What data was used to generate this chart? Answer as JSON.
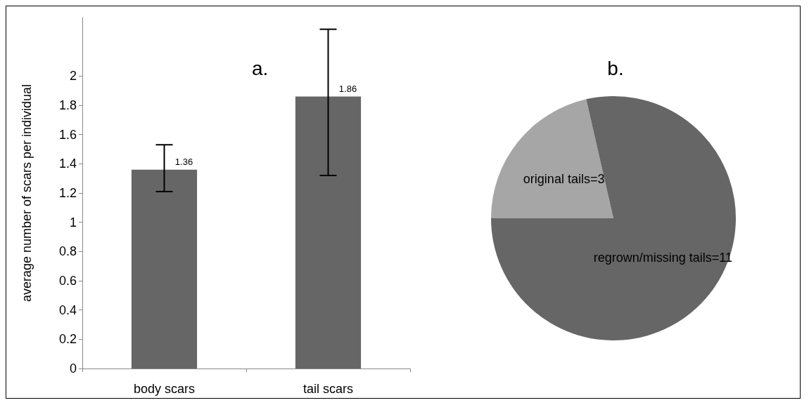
{
  "chart_data": [
    {
      "type": "bar",
      "title": "a.",
      "ylabel": "average number of scars per individual",
      "categories": [
        "body scars",
        "tail scars"
      ],
      "values": [
        1.36,
        1.86
      ],
      "color": "#666666",
      "errors": [
        [
          1.21,
          1.53
        ],
        [
          1.32,
          2.32
        ]
      ],
      "data_labels": true,
      "ylim": [
        0,
        2.4
      ],
      "yticks": [
        0,
        0.2,
        0.4,
        0.6,
        0.8,
        1,
        1.2,
        1.4,
        1.6,
        1.8,
        2
      ],
      "grid": false,
      "legend": false
    },
    {
      "type": "pie",
      "title": "b.",
      "categories": [
        "original tails=3",
        "regrown/missing tails=11"
      ],
      "values": [
        3,
        11
      ],
      "colors": [
        "#a6a6a6",
        "#666666"
      ],
      "legend": false
    }
  ]
}
